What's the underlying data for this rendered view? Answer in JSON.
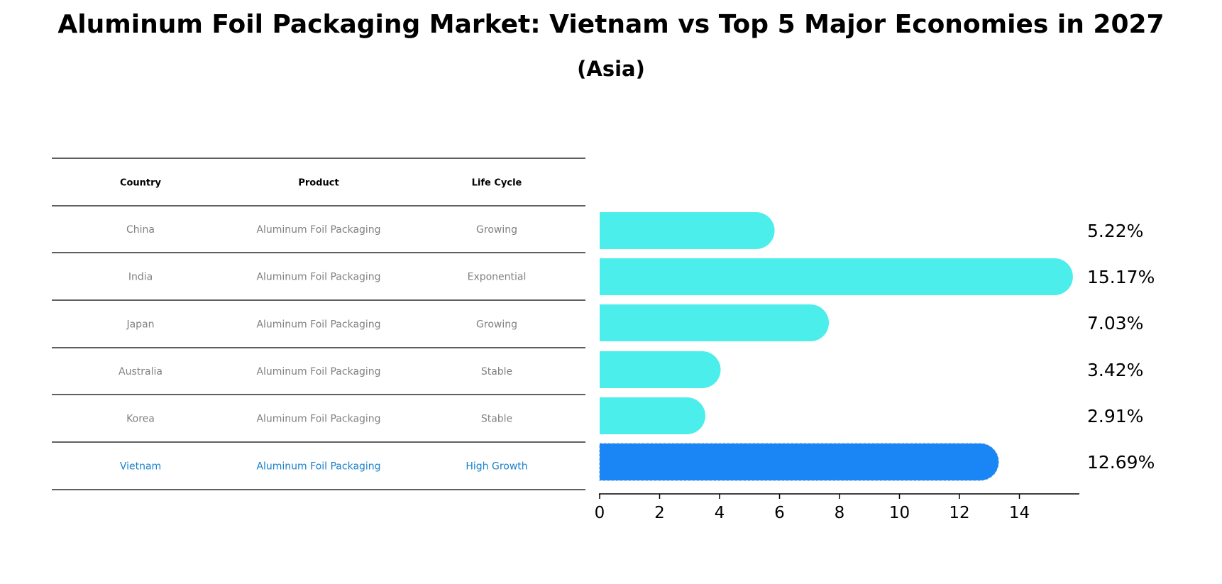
{
  "title": "Aluminum Foil Packaging Market: Vietnam vs Top 5 Major Economies in 2027",
  "subtitle": "(Asia)",
  "table": {
    "headers": [
      "Country",
      "Product",
      "Life Cycle"
    ],
    "rows": [
      {
        "country": "China",
        "product": "Aluminum Foil Packaging",
        "life_cycle": "Growing",
        "highlight": false
      },
      {
        "country": "India",
        "product": "Aluminum Foil Packaging",
        "life_cycle": "Exponential",
        "highlight": false
      },
      {
        "country": "Japan",
        "product": "Aluminum Foil Packaging",
        "life_cycle": "Growing",
        "highlight": false
      },
      {
        "country": "Australia",
        "product": "Aluminum Foil Packaging",
        "life_cycle": "Stable",
        "highlight": false
      },
      {
        "country": "Korea",
        "product": "Aluminum Foil Packaging",
        "life_cycle": "Stable",
        "highlight": false
      },
      {
        "country": "Vietnam",
        "product": "Aluminum Foil Packaging",
        "life_cycle": "High Growth",
        "highlight": true
      }
    ]
  },
  "chart_data": {
    "type": "bar",
    "orientation": "horizontal",
    "categories": [
      "China",
      "India",
      "Japan",
      "Australia",
      "Korea",
      "Vietnam"
    ],
    "values": [
      5.22,
      15.17,
      7.03,
      3.42,
      2.91,
      12.69
    ],
    "value_labels": [
      "5.22%",
      "15.17%",
      "7.03%",
      "3.42%",
      "2.91%",
      "12.69%"
    ],
    "xticks": [
      0,
      2,
      4,
      6,
      8,
      10,
      12,
      14
    ],
    "xlim": [
      0,
      16
    ],
    "highlight_category": "Vietnam",
    "colors": {
      "default": "#4beeea",
      "highlight": "#1a86f5"
    },
    "grid": false
  }
}
